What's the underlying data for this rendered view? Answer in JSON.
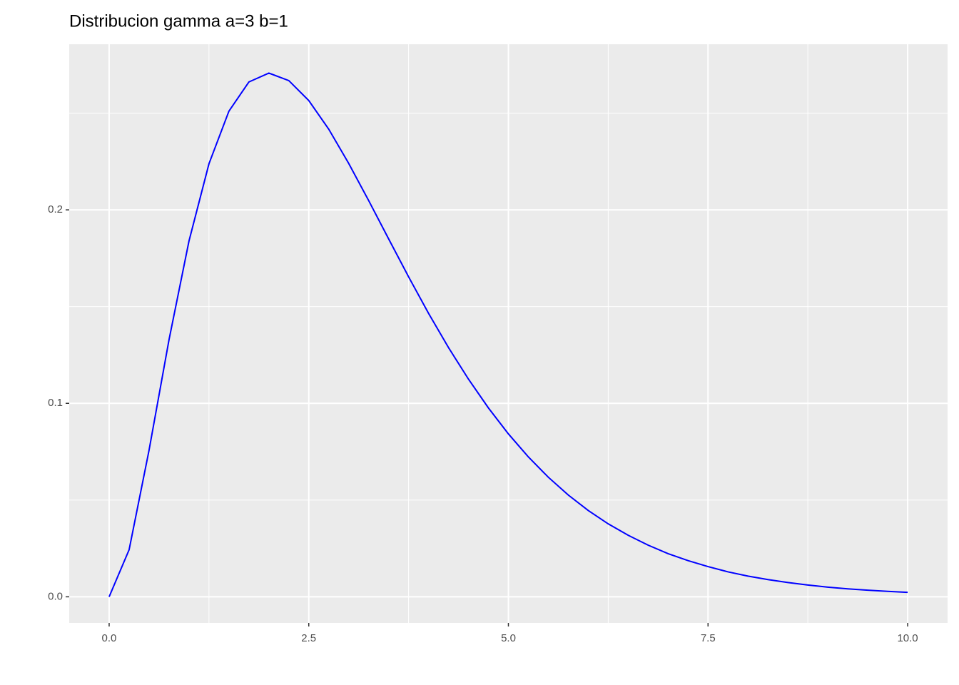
{
  "chart_data": {
    "type": "line",
    "title": "Distribucion gamma a=3 b=1",
    "x": [
      0,
      0.25,
      0.5,
      0.75,
      1,
      1.25,
      1.5,
      1.75,
      2,
      2.25,
      2.5,
      2.75,
      3,
      3.25,
      3.5,
      3.75,
      4,
      4.25,
      4.5,
      4.75,
      5,
      5.25,
      5.5,
      5.75,
      6,
      6.25,
      6.5,
      6.75,
      7,
      7.25,
      7.5,
      7.75,
      8,
      8.25,
      8.5,
      8.75,
      9,
      9.25,
      9.5,
      9.75,
      10
    ],
    "values": [
      0,
      0.0243,
      0.0758,
      0.1329,
      0.1839,
      0.2238,
      0.251,
      0.2661,
      0.2707,
      0.2668,
      0.2565,
      0.2417,
      0.224,
      0.2048,
      0.185,
      0.1654,
      0.1465,
      0.1288,
      0.1125,
      0.0976,
      0.0842,
      0.0723,
      0.0618,
      0.0526,
      0.0446,
      0.0377,
      0.0318,
      0.0267,
      0.0223,
      0.0187,
      0.0156,
      0.0129,
      0.0107,
      0.0089,
      0.0074,
      0.0061,
      0.005,
      0.0041,
      0.0034,
      0.0028,
      0.0023
    ],
    "color": "#0000ff",
    "xlim": [
      -0.5,
      10.5
    ],
    "xticks": [
      {
        "value": 0,
        "label": "0.0"
      },
      2.5,
      {
        "value": 5,
        "label": "5.0"
      },
      7.5,
      {
        "value": 10,
        "label": "10.0"
      }
    ],
    "ylim": [
      -0.0135,
      0.2856
    ],
    "yticks": [
      {
        "value": 0,
        "label": "0.0"
      },
      0.1,
      0.2
    ],
    "grid": true
  }
}
